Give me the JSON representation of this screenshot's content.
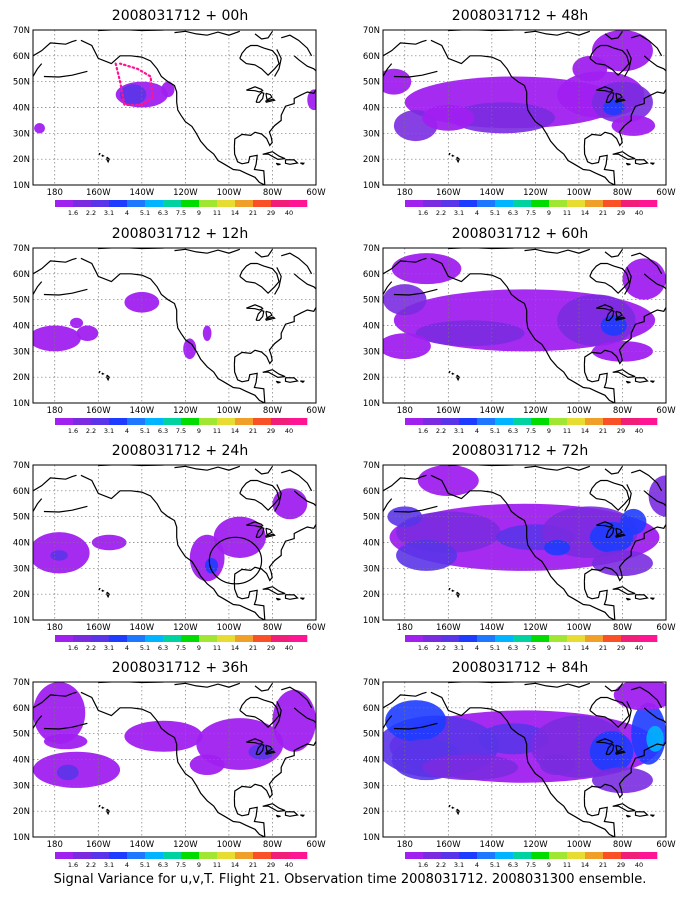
{
  "panels": [
    {
      "title": "2008031712 + 00h"
    },
    {
      "title": "2008031712 + 48h"
    },
    {
      "title": "2008031712 + 12h"
    },
    {
      "title": "2008031712 + 60h"
    },
    {
      "title": "2008031712 + 24h"
    },
    {
      "title": "2008031712 + 72h"
    },
    {
      "title": "2008031712 + 36h"
    },
    {
      "title": "2008031712 + 84h"
    }
  ],
  "lat_labels": [
    "70N",
    "60N",
    "50N",
    "40N",
    "30N",
    "20N",
    "10N"
  ],
  "lon_labels": [
    "180",
    "160W",
    "140W",
    "120W",
    "100W",
    "80W",
    "60W"
  ],
  "colorbar": {
    "labels": [
      "1.6",
      "2.2",
      "3.1",
      "4",
      "5.1",
      "6.3",
      "7.5",
      "9",
      "11",
      "14",
      "21",
      "29",
      "40"
    ],
    "colors": [
      "#a020f0",
      "#7a2be0",
      "#5a34e8",
      "#1e3cff",
      "#1e78ff",
      "#00b4ff",
      "#00d2a0",
      "#00dc00",
      "#a0e632",
      "#e6dc32",
      "#f0a028",
      "#fa5028",
      "#f01e78",
      "#ff1493"
    ]
  },
  "footer": "Signal Variance for u,v,T. Flight 21. Observation time 2008031712. 2008031300 ensemble."
}
